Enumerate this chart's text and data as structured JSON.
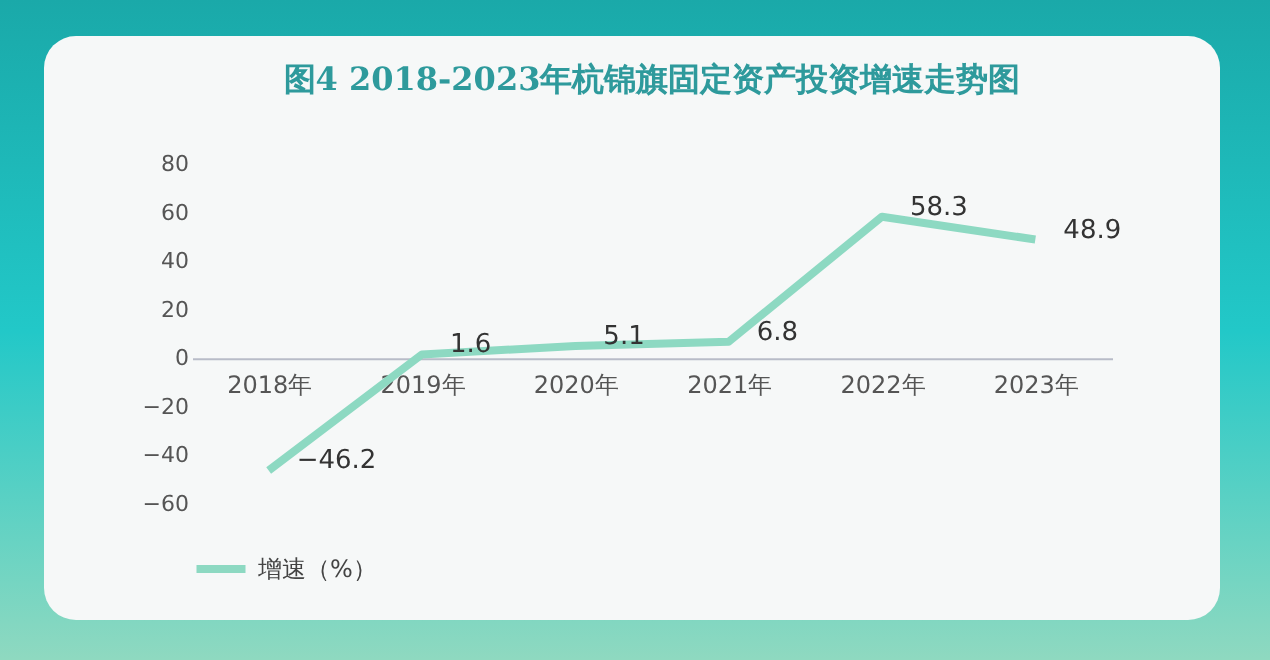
{
  "chart_data": {
    "type": "line",
    "title": "图4 2018-2023年杭锦旗固定资产投资增速走势图",
    "categories": [
      "2018年",
      "2019年",
      "2020年",
      "2021年",
      "2022年",
      "2023年"
    ],
    "series": [
      {
        "name": "增速（%）",
        "color": "#8dd9c2",
        "values": [
          -46.2,
          1.6,
          5.1,
          6.8,
          58.3,
          48.9
        ]
      }
    ],
    "ylim": [
      -60,
      80
    ],
    "yticks": [
      -60,
      -40,
      -20,
      0,
      20,
      40,
      60,
      80
    ],
    "data_labels": true,
    "grid": false,
    "legend": "bottom",
    "marker": "none",
    "line_style": "solid"
  }
}
